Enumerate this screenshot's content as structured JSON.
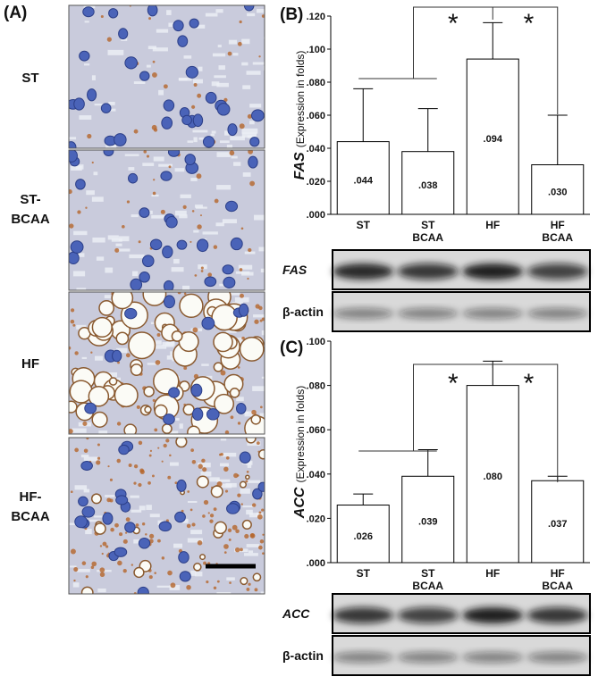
{
  "panel_a": {
    "label": "(A)",
    "rows": [
      "ST",
      "ST-BCAA",
      "HF",
      "HF-BCAA"
    ]
  },
  "chart_data": [
    {
      "type": "bar",
      "panel_label": "(B)",
      "ylabel_gene": "FAS",
      "ylabel": "(Expression in folds)",
      "categories": [
        "ST",
        "ST BCAA",
        "HF",
        "HF BCAA"
      ],
      "values": [
        0.044,
        0.038,
        0.094,
        0.03
      ],
      "value_labels": [
        ".044",
        ".038",
        ".094",
        ".030"
      ],
      "errors": [
        0.032,
        0.026,
        0.022,
        0.03
      ],
      "color": "#ffffff",
      "ylim": [
        0,
        0.12
      ],
      "yticks": [
        {
          "value": 0,
          "label": ".000"
        },
        {
          "value": 0.02,
          "label": ".020"
        },
        {
          "value": 0.04,
          "label": ".040"
        },
        {
          "value": 0.06,
          "label": ".060"
        },
        {
          "value": 0.08,
          "label": ".080"
        },
        {
          "value": 0.1,
          "label": ".100"
        },
        {
          "value": 0.12,
          "label": ".120"
        }
      ],
      "annotations": [
        "*",
        "*"
      ],
      "blot_labels": [
        "FAS",
        "β-actin"
      ]
    },
    {
      "type": "bar",
      "panel_label": "(C)",
      "ylabel_gene": "ACC",
      "ylabel": "(Expression in folds)",
      "categories": [
        "ST",
        "ST BCAA",
        "HF",
        "HF BCAA"
      ],
      "values": [
        0.026,
        0.039,
        0.08,
        0.037
      ],
      "value_labels": [
        ".026",
        ".039",
        ".080",
        ".037"
      ],
      "errors": [
        0.005,
        0.012,
        0.011,
        0.002
      ],
      "color": "#ffffff",
      "ylim": [
        0,
        0.1
      ],
      "yticks": [
        {
          "value": 0,
          "label": ".000"
        },
        {
          "value": 0.02,
          "label": ".020"
        },
        {
          "value": 0.04,
          "label": ".040"
        },
        {
          "value": 0.06,
          "label": ".060"
        },
        {
          "value": 0.08,
          "label": ".080"
        },
        {
          "value": 0.1,
          "label": ".100"
        }
      ],
      "annotations": [
        "*",
        "*"
      ],
      "blot_labels": [
        "ACC",
        "β-actin"
      ]
    }
  ]
}
